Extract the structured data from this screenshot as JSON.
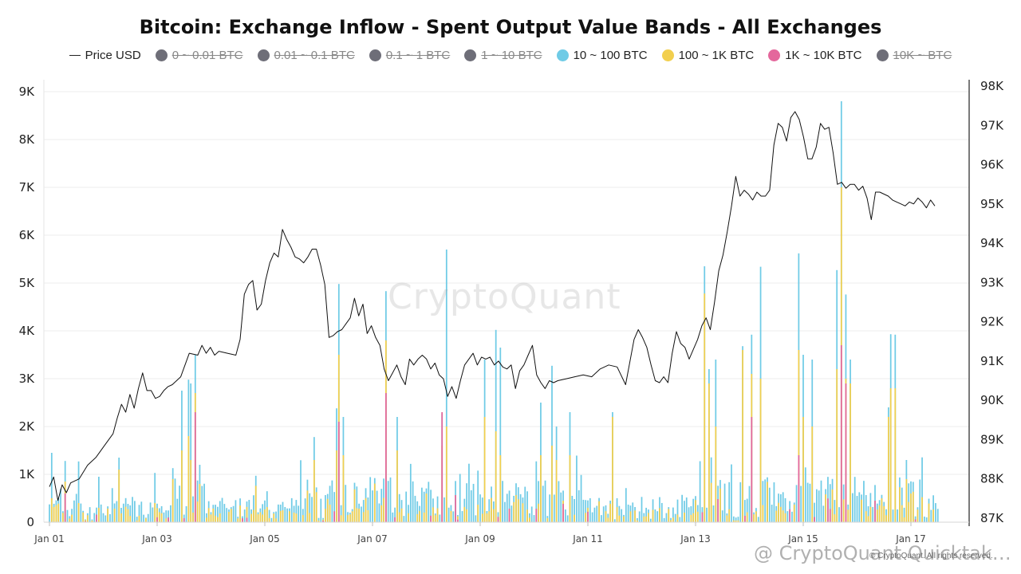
{
  "chart_data": {
    "type": "bar",
    "title": "Bitcoin: Exchange Inflow - Spent Output Value Bands - All Exchanges",
    "legend": [
      {
        "label": "Price USD",
        "marker": "line",
        "color": "#222222",
        "hidden": false
      },
      {
        "label": "0 ~ 0.01 BTC",
        "marker": "dot",
        "color": "#6e6e78",
        "hidden": true
      },
      {
        "label": "0.01 ~ 0.1 BTC",
        "marker": "dot",
        "color": "#6e6e78",
        "hidden": true
      },
      {
        "label": "0.1 ~ 1 BTC",
        "marker": "dot",
        "color": "#6e6e78",
        "hidden": true
      },
      {
        "label": "1 ~ 10 BTC",
        "marker": "dot",
        "color": "#6e6e78",
        "hidden": true
      },
      {
        "label": "10 ~ 100 BTC",
        "marker": "dot",
        "color": "#6fcbe6",
        "hidden": false
      },
      {
        "label": "100 ~ 1K BTC",
        "marker": "dot",
        "color": "#f2cf4e",
        "hidden": false
      },
      {
        "label": "1K ~ 10K BTC",
        "marker": "dot",
        "color": "#e4679c",
        "hidden": false
      },
      {
        "label": "10K ~ BTC",
        "marker": "dot",
        "color": "#6e6e78",
        "hidden": true
      }
    ],
    "legend_placement": "top-center",
    "x_start": "Jan 01",
    "hours_span": 396,
    "x_ticks": [
      "Jan 01",
      "Jan 03",
      "Jan 05",
      "Jan 07",
      "Jan 09",
      "Jan 11",
      "Jan 13",
      "Jan 15",
      "Jan 17"
    ],
    "y_left_ticks": [
      "0",
      "1K",
      "2K",
      "3K",
      "4K",
      "5K",
      "6K",
      "7K",
      "8K",
      "9K"
    ],
    "y_left_lim": [
      0,
      9000
    ],
    "y_right_ticks": [
      "87K",
      "88K",
      "89K",
      "90K",
      "91K",
      "92K",
      "93K",
      "94K",
      "95K",
      "96K",
      "97K",
      "98K"
    ],
    "y_right_lim": [
      87000,
      98000
    ],
    "grid": "horizontal",
    "bar_colors": {
      "10 ~ 100 BTC": "#6fcbe6",
      "100 ~ 1K BTC": "#f2cf4e",
      "1K ~ 10K BTC": "#e4679c"
    },
    "spikes": [
      {
        "hour": 1,
        "total": 1450,
        "yellow": 500,
        "pink": 0
      },
      {
        "hour": 7,
        "total": 1280,
        "yellow": 850,
        "pink": 600
      },
      {
        "hour": 13,
        "total": 1270,
        "yellow": 400,
        "pink": 0
      },
      {
        "hour": 22,
        "total": 950,
        "yellow": 300,
        "pink": 0
      },
      {
        "hour": 31,
        "total": 1350,
        "yellow": 1100,
        "pink": 0
      },
      {
        "hour": 47,
        "total": 1030,
        "yellow": 400,
        "pink": 0
      },
      {
        "hour": 55,
        "total": 1130,
        "yellow": 900,
        "pink": 0
      },
      {
        "hour": 59,
        "total": 2750,
        "yellow": 1500,
        "pink": 0
      },
      {
        "hour": 62,
        "total": 2980,
        "yellow": 1800,
        "pink": 0
      },
      {
        "hour": 63,
        "total": 2900,
        "yellow": 1300,
        "pink": 0
      },
      {
        "hour": 65,
        "total": 3500,
        "yellow": 2700,
        "pink": 2300
      },
      {
        "hour": 67,
        "total": 1200,
        "yellow": 800,
        "pink": 0
      },
      {
        "hour": 92,
        "total": 970,
        "yellow": 760,
        "pink": 0
      },
      {
        "hour": 118,
        "total": 1780,
        "yellow": 1300,
        "pink": 0
      },
      {
        "hour": 128,
        "total": 2380,
        "yellow": 1500,
        "pink": 0
      },
      {
        "hour": 129,
        "total": 4980,
        "yellow": 3500,
        "pink": 2100
      },
      {
        "hour": 131,
        "total": 2200,
        "yellow": 1400,
        "pink": 0
      },
      {
        "hour": 150,
        "total": 4830,
        "yellow": 3800,
        "pink": 2700
      },
      {
        "hour": 155,
        "total": 2200,
        "yellow": 1500,
        "pink": 0
      },
      {
        "hour": 175,
        "total": 2270,
        "yellow": 1600,
        "pink": 2300
      },
      {
        "hour": 177,
        "total": 5700,
        "yellow": 2000,
        "pink": 0
      },
      {
        "hour": 194,
        "total": 3400,
        "yellow": 2200,
        "pink": 0
      },
      {
        "hour": 199,
        "total": 4020,
        "yellow": 1900,
        "pink": 0
      },
      {
        "hour": 201,
        "total": 3650,
        "yellow": 1400,
        "pink": 0
      },
      {
        "hour": 219,
        "total": 2500,
        "yellow": 1400,
        "pink": 0
      },
      {
        "hour": 224,
        "total": 3270,
        "yellow": 1600,
        "pink": 0
      },
      {
        "hour": 226,
        "total": 2000,
        "yellow": 1300,
        "pink": 0
      },
      {
        "hour": 232,
        "total": 2300,
        "yellow": 1400,
        "pink": 0
      },
      {
        "hour": 251,
        "total": 2300,
        "yellow": 2200,
        "pink": 0
      },
      {
        "hour": 292,
        "total": 5350,
        "yellow": 4780,
        "pink": 0
      },
      {
        "hour": 294,
        "total": 3200,
        "yellow": 2900,
        "pink": 0
      },
      {
        "hour": 297,
        "total": 3400,
        "yellow": 2000,
        "pink": 0
      },
      {
        "hour": 309,
        "total": 3680,
        "yellow": 3600,
        "pink": 0
      },
      {
        "hour": 313,
        "total": 3920,
        "yellow": 3100,
        "pink": 2200
      },
      {
        "hour": 317,
        "total": 5340,
        "yellow": 3000,
        "pink": 0
      },
      {
        "hour": 334,
        "total": 5620,
        "yellow": 3600,
        "pink": 1400
      },
      {
        "hour": 336,
        "total": 3500,
        "yellow": 2200,
        "pink": 0
      },
      {
        "hour": 340,
        "total": 3400,
        "yellow": 2000,
        "pink": 0
      },
      {
        "hour": 351,
        "total": 5270,
        "yellow": 3200,
        "pink": 0
      },
      {
        "hour": 353,
        "total": 8800,
        "yellow": 7000,
        "pink": 3700
      },
      {
        "hour": 355,
        "total": 4760,
        "yellow": 3000,
        "pink": 2900
      },
      {
        "hour": 357,
        "total": 3400,
        "yellow": 2900,
        "pink": 0
      },
      {
        "hour": 374,
        "total": 2400,
        "yellow": 2200,
        "pink": 0
      },
      {
        "hour": 375,
        "total": 3930,
        "yellow": 2800,
        "pink": 0
      },
      {
        "hour": 377,
        "total": 3920,
        "yellow": 2800,
        "pink": 0
      },
      {
        "hour": 382,
        "total": 1300,
        "yellow": 900,
        "pink": 0
      }
    ],
    "price_points": [
      [
        0,
        87800
      ],
      [
        2,
        88050
      ],
      [
        4,
        87450
      ],
      [
        6,
        87850
      ],
      [
        8,
        87650
      ],
      [
        10,
        87900
      ],
      [
        14,
        88000
      ],
      [
        18,
        88350
      ],
      [
        22,
        88550
      ],
      [
        26,
        88850
      ],
      [
        30,
        89150
      ],
      [
        32,
        89550
      ],
      [
        34,
        89900
      ],
      [
        36,
        89700
      ],
      [
        38,
        90150
      ],
      [
        40,
        89800
      ],
      [
        42,
        90300
      ],
      [
        44,
        90700
      ],
      [
        46,
        90250
      ],
      [
        48,
        90250
      ],
      [
        50,
        90050
      ],
      [
        52,
        90100
      ],
      [
        54,
        90250
      ],
      [
        56,
        90350
      ],
      [
        58,
        90400
      ],
      [
        62,
        90600
      ],
      [
        66,
        91200
      ],
      [
        70,
        91150
      ],
      [
        72,
        91400
      ],
      [
        74,
        91200
      ],
      [
        76,
        91350
      ],
      [
        78,
        91150
      ],
      [
        80,
        91250
      ],
      [
        84,
        91200
      ],
      [
        88,
        91150
      ],
      [
        90,
        91550
      ],
      [
        92,
        92700
      ],
      [
        94,
        92950
      ],
      [
        96,
        93050
      ],
      [
        98,
        92300
      ],
      [
        100,
        92450
      ],
      [
        102,
        93050
      ],
      [
        104,
        93500
      ],
      [
        106,
        93750
      ],
      [
        108,
        93650
      ],
      [
        110,
        94350
      ],
      [
        112,
        94100
      ],
      [
        114,
        93900
      ],
      [
        116,
        93650
      ],
      [
        118,
        93600
      ],
      [
        120,
        93500
      ],
      [
        122,
        93650
      ],
      [
        124,
        93850
      ],
      [
        126,
        93850
      ],
      [
        128,
        93450
      ],
      [
        130,
        92950
      ],
      [
        132,
        91600
      ],
      [
        134,
        91650
      ],
      [
        136,
        91750
      ],
      [
        138,
        91800
      ],
      [
        140,
        91950
      ],
      [
        142,
        92100
      ],
      [
        144,
        92600
      ],
      [
        146,
        92150
      ],
      [
        148,
        92450
      ],
      [
        150,
        91700
      ],
      [
        152,
        91900
      ],
      [
        154,
        91600
      ],
      [
        156,
        91400
      ],
      [
        158,
        90800
      ],
      [
        160,
        90500
      ],
      [
        162,
        90700
      ],
      [
        164,
        90900
      ],
      [
        166,
        90600
      ],
      [
        168,
        90400
      ],
      [
        170,
        91050
      ],
      [
        172,
        90900
      ],
      [
        174,
        91050
      ],
      [
        176,
        91150
      ],
      [
        178,
        91050
      ],
      [
        180,
        90800
      ],
      [
        182,
        90950
      ],
      [
        184,
        90650
      ],
      [
        186,
        90550
      ],
      [
        188,
        90100
      ],
      [
        190,
        90350
      ],
      [
        192,
        90050
      ],
      [
        194,
        90500
      ],
      [
        196,
        90900
      ],
      [
        198,
        91050
      ],
      [
        200,
        91200
      ],
      [
        202,
        90900
      ],
      [
        204,
        91100
      ],
      [
        206,
        91050
      ],
      [
        208,
        91100
      ],
      [
        210,
        90900
      ],
      [
        212,
        91000
      ],
      [
        214,
        90850
      ],
      [
        216,
        90800
      ],
      [
        218,
        90900
      ],
      [
        220,
        90300
      ],
      [
        222,
        90750
      ],
      [
        224,
        90900
      ],
      [
        226,
        91150
      ],
      [
        228,
        91400
      ],
      [
        230,
        90650
      ],
      [
        232,
        90450
      ],
      [
        234,
        90300
      ],
      [
        236,
        90500
      ],
      [
        238,
        90450
      ],
      [
        240,
        90500
      ],
      [
        244,
        90550
      ],
      [
        248,
        90600
      ],
      [
        252,
        90650
      ],
      [
        256,
        90600
      ],
      [
        260,
        90800
      ],
      [
        264,
        90900
      ],
      [
        268,
        90850
      ],
      [
        272,
        90400
      ],
      [
        276,
        91550
      ],
      [
        278,
        91800
      ],
      [
        280,
        91600
      ],
      [
        282,
        91350
      ],
      [
        284,
        90900
      ],
      [
        286,
        90500
      ],
      [
        288,
        90450
      ],
      [
        290,
        90600
      ],
      [
        292,
        90450
      ],
      [
        294,
        91200
      ],
      [
        296,
        91750
      ],
      [
        298,
        91450
      ],
      [
        300,
        91350
      ],
      [
        302,
        91050
      ],
      [
        304,
        91300
      ],
      [
        306,
        91550
      ],
      [
        308,
        91900
      ],
      [
        310,
        92100
      ],
      [
        312,
        91800
      ],
      [
        314,
        92500
      ],
      [
        316,
        93300
      ],
      [
        318,
        93700
      ],
      [
        320,
        94300
      ],
      [
        322,
        94950
      ],
      [
        324,
        95700
      ],
      [
        326,
        95200
      ],
      [
        328,
        95350
      ],
      [
        330,
        95250
      ],
      [
        332,
        95100
      ],
      [
        334,
        95300
      ],
      [
        336,
        95200
      ],
      [
        338,
        95200
      ],
      [
        340,
        95350
      ],
      [
        342,
        96500
      ],
      [
        344,
        97050
      ],
      [
        346,
        96950
      ],
      [
        348,
        96600
      ],
      [
        350,
        97200
      ],
      [
        352,
        97350
      ],
      [
        354,
        97150
      ],
      [
        356,
        96700
      ],
      [
        358,
        96150
      ],
      [
        360,
        96150
      ],
      [
        362,
        96450
      ],
      [
        364,
        97050
      ],
      [
        366,
        96900
      ],
      [
        368,
        96950
      ],
      [
        370,
        96300
      ],
      [
        372,
        95500
      ],
      [
        374,
        95550
      ],
      [
        376,
        95400
      ],
      [
        378,
        95500
      ],
      [
        380,
        95500
      ],
      [
        382,
        95350
      ],
      [
        384,
        95450
      ],
      [
        386,
        95150
      ],
      [
        388,
        94600
      ],
      [
        390,
        95300
      ],
      [
        392,
        95300
      ],
      [
        394,
        95250
      ],
      [
        396,
        95200
      ],
      [
        398,
        95100
      ],
      [
        400,
        95050
      ],
      [
        402,
        95000
      ],
      [
        404,
        94950
      ],
      [
        406,
        95050
      ],
      [
        408,
        95000
      ],
      [
        410,
        95150
      ],
      [
        412,
        95050
      ],
      [
        414,
        94900
      ],
      [
        416,
        95100
      ],
      [
        418,
        94950
      ]
    ]
  },
  "watermark": "CryptoQuant",
  "credit": "@ CryptoQuant Quicktak…",
  "copyright": "© CryptoQuant. All rights reserved."
}
